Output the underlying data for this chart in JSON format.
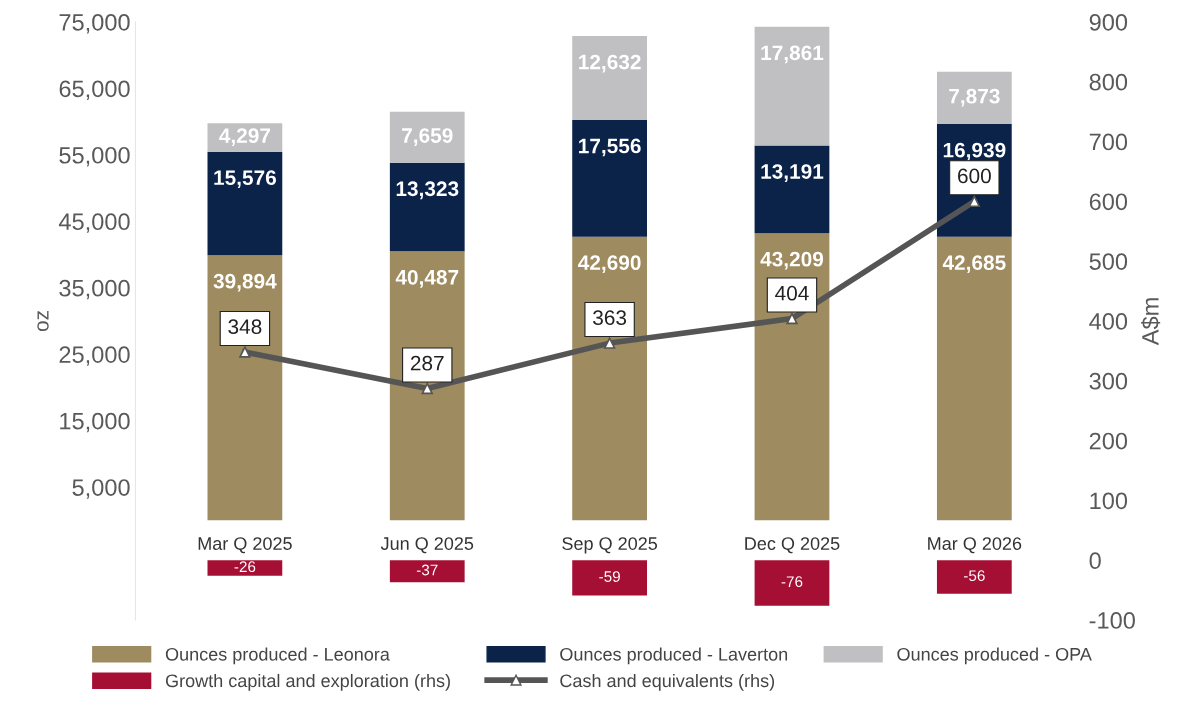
{
  "chart_data": {
    "type": "bar",
    "stacked": true,
    "ylabel": "oz",
    "y2label": "A$m",
    "categories": [
      "Mar Q 2025",
      "Jun Q 2025",
      "Sep Q 2025",
      "Dec Q 2025",
      "Mar Q 2026"
    ],
    "series": [
      {
        "name": "Ounces produced - Leonora",
        "color": "#9e8b5f",
        "values": [
          39894,
          40487,
          42690,
          43209,
          42685
        ],
        "value_labels": [
          "39,894",
          "40,487",
          "42,690",
          "43,209",
          "42,685"
        ]
      },
      {
        "name": "Ounces produced - Laverton",
        "color": "#0b2249",
        "values": [
          15576,
          13323,
          17556,
          13191,
          16939
        ],
        "value_labels": [
          "15,576",
          "13,323",
          "17,556",
          "13,191",
          "16,939"
        ]
      },
      {
        "name": "Ounces produced - OPA",
        "color": "#c0c0c2",
        "values": [
          4297,
          7659,
          12632,
          17861,
          7873
        ],
        "value_labels": [
          "4,297",
          "7,659",
          "12,632",
          "17,861",
          "7,873"
        ]
      },
      {
        "name": "Growth capital and exploration (rhs)",
        "axis": "y2",
        "color": "#a50f34",
        "values": [
          -26,
          -37,
          -59,
          -76,
          -56
        ],
        "value_labels": [
          "-26",
          "-37",
          "-59",
          "-76",
          "-56"
        ]
      },
      {
        "name": "Cash and equivalents (rhs)",
        "type": "line",
        "axis": "y2",
        "color": "#555555",
        "marker": "triangle",
        "values": [
          348,
          287,
          363,
          404,
          600
        ],
        "value_labels": [
          "348",
          "287",
          "363",
          "404",
          "600"
        ]
      }
    ],
    "ylim": [
      -15000,
      75000
    ],
    "yticks": [
      {
        "value": 5000,
        "label": "5,000"
      },
      {
        "value": 15000,
        "label": "15,000"
      },
      {
        "value": 25000,
        "label": "25,000"
      },
      {
        "value": 35000,
        "label": "35,000"
      },
      {
        "value": 45000,
        "label": "45,000"
      },
      {
        "value": 55000,
        "label": "55,000"
      },
      {
        "value": 65000,
        "label": "65,000"
      },
      {
        "value": 75000,
        "label": "75,000"
      }
    ],
    "y2lim": [
      -100,
      900
    ],
    "y2ticks": [
      -100,
      0,
      100,
      200,
      300,
      400,
      500,
      600,
      700,
      800,
      900
    ],
    "grid": false,
    "legend": "bottom"
  }
}
